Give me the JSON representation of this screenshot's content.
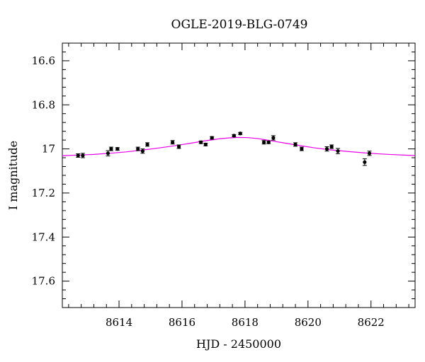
{
  "chart_data": {
    "type": "scatter",
    "title": "OGLE-2019-BLG-0749",
    "xlabel": "HJD - 2450000",
    "ylabel": "I magnitude",
    "xlim": [
      8612.2,
      8623.4
    ],
    "ylim": [
      17.72,
      16.52
    ],
    "y_inverted": true,
    "x_ticks": [
      8614,
      8616,
      8618,
      8620,
      8622
    ],
    "x_tick_labels": [
      "8614",
      "8616",
      "8618",
      "8620",
      "8622"
    ],
    "y_ticks": [
      16.6,
      16.8,
      17.0,
      17.2,
      17.4,
      17.6
    ],
    "y_tick_labels": [
      "16.6",
      "16.8",
      "17",
      "17.2",
      "17.4",
      "17.6"
    ],
    "grid": false,
    "colors": {
      "data": "#000000",
      "model": "#e600e6"
    },
    "series": [
      {
        "kind": "points_with_errorbars",
        "x": [
          8612.7,
          8612.85,
          8613.65,
          8613.75,
          8613.95,
          8614.6,
          8614.75,
          8614.9,
          8615.7,
          8615.9,
          8616.6,
          8616.75,
          8616.95,
          8617.65,
          8617.85,
          8618.6,
          8618.75,
          8618.9,
          8619.6,
          8619.8,
          8620.6,
          8620.75,
          8620.95,
          8621.8,
          8621.95
        ],
        "y": [
          17.03,
          17.03,
          17.02,
          17.0,
          17.0,
          17.0,
          17.01,
          16.98,
          16.97,
          16.99,
          16.97,
          16.98,
          16.95,
          16.94,
          16.93,
          16.97,
          16.97,
          16.95,
          16.98,
          17.0,
          17.0,
          16.99,
          17.01,
          17.06,
          17.02
        ],
        "yerr": [
          0.008,
          0.01,
          0.012,
          0.008,
          0.006,
          0.008,
          0.01,
          0.008,
          0.008,
          0.008,
          0.006,
          0.006,
          0.006,
          0.005,
          0.005,
          0.008,
          0.006,
          0.01,
          0.008,
          0.008,
          0.01,
          0.008,
          0.012,
          0.015,
          0.01
        ]
      },
      {
        "kind": "model_line",
        "x": [
          8612.2,
          8612.7,
          8613.2,
          8613.7,
          8614.2,
          8614.7,
          8615.2,
          8615.7,
          8616.2,
          8616.7,
          8617.2,
          8617.5,
          8617.8,
          8618.1,
          8618.4,
          8618.7,
          8619.2,
          8619.7,
          8620.2,
          8620.7,
          8621.2,
          8621.7,
          8622.2,
          8622.7,
          8623.2,
          8623.4
        ],
        "y": [
          17.031,
          17.028,
          17.025,
          17.02,
          17.014,
          17.006,
          16.997,
          16.987,
          16.976,
          16.964,
          16.954,
          16.95,
          16.948,
          16.949,
          16.953,
          16.96,
          16.972,
          16.984,
          16.995,
          17.004,
          17.011,
          17.017,
          17.022,
          17.026,
          17.029,
          17.03
        ]
      }
    ]
  }
}
